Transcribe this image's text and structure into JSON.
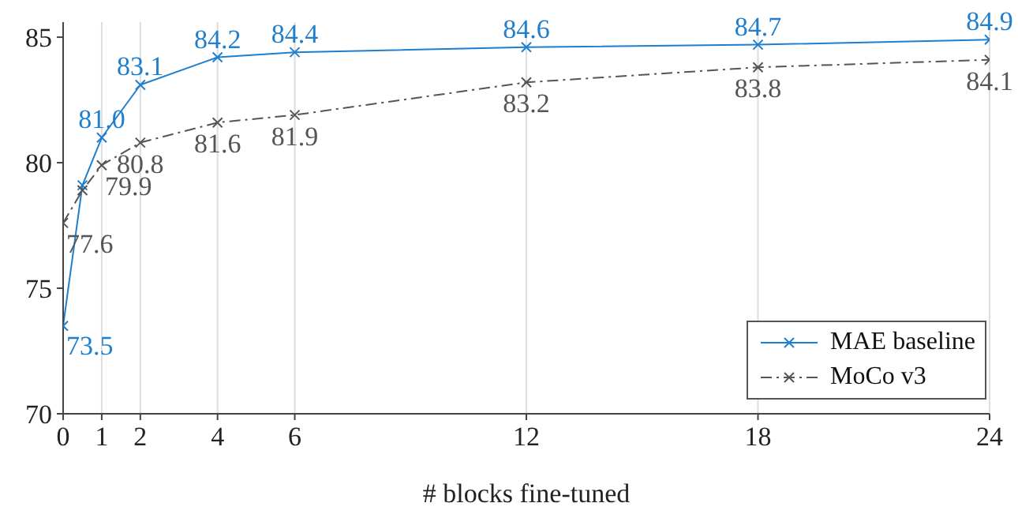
{
  "chart_data": {
    "type": "line",
    "xlabel": "# blocks fine-tuned",
    "x": [
      0,
      0.5,
      1,
      2,
      4,
      6,
      12,
      18,
      24
    ],
    "series": [
      {
        "name": "MAE baseline",
        "color": "#1f7fcf",
        "values": [
          73.5,
          79.1,
          81.0,
          83.1,
          84.2,
          84.4,
          84.6,
          84.7,
          84.9
        ],
        "value_labels": [
          "73.5",
          null,
          "81.0",
          "83.1",
          "84.2",
          "84.4",
          "84.6",
          "84.7",
          "84.9"
        ],
        "line_style": "solid"
      },
      {
        "name": "MoCo v3",
        "color": "#555555",
        "values": [
          77.6,
          78.9,
          79.9,
          80.8,
          81.6,
          81.9,
          83.2,
          83.8,
          84.1
        ],
        "value_labels": [
          "77.6",
          null,
          "79.9",
          "80.8",
          "81.6",
          "81.9",
          "83.2",
          "83.8",
          "84.1"
        ],
        "line_style": "dashed"
      }
    ],
    "xlim": [
      0,
      24
    ],
    "xticks": [
      0,
      1,
      2,
      4,
      6,
      12,
      18,
      24
    ],
    "ylim": [
      70,
      85.6
    ],
    "yticks": [
      70,
      75,
      80,
      85
    ],
    "grid": "x",
    "legend": "bottom right",
    "marker": "cross"
  }
}
